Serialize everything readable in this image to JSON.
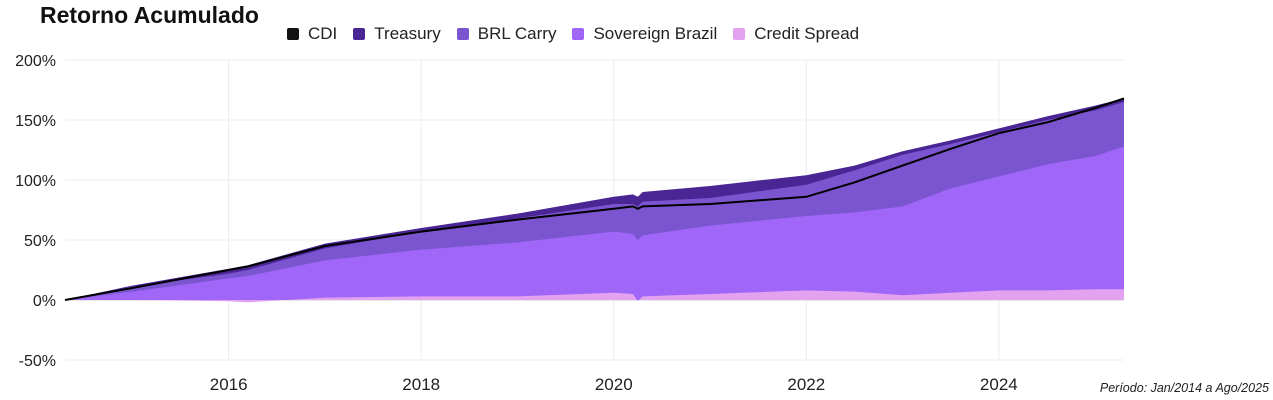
{
  "chart_data": {
    "type": "area",
    "title": "Retorno Acumulado",
    "footnote": "Período: Jan/2014 a Ago/2025",
    "xlim": [
      2014.3,
      2025.3
    ],
    "ylim": [
      -50,
      200
    ],
    "y_ticks": [
      200,
      150,
      100,
      50,
      0,
      -50
    ],
    "y_tick_labels": [
      "200%",
      "150%",
      "100%",
      "50%",
      "0%",
      "-50%"
    ],
    "x_ticks": [
      2016,
      2018,
      2020,
      2022,
      2024
    ],
    "x_tick_labels": [
      "2016",
      "2018",
      "2020",
      "2022",
      "2024"
    ],
    "grid": true,
    "legend_position": "top",
    "x": [
      2014.3,
      2015.0,
      2016.0,
      2016.2,
      2017.0,
      2018.0,
      2019.0,
      2020.0,
      2020.2,
      2020.25,
      2020.3,
      2021.0,
      2022.0,
      2022.5,
      2023.0,
      2023.5,
      2024.0,
      2024.5,
      2025.0,
      2025.3
    ],
    "series": [
      {
        "name": "Credit Spread",
        "color": "#e2a2f0",
        "values": [
          0,
          0,
          -1,
          -2,
          2,
          3,
          3,
          6,
          5,
          -1,
          3,
          5,
          8,
          7,
          4,
          6,
          8,
          8,
          9,
          9
        ]
      },
      {
        "name": "Sovereign Brazil",
        "color": "#9f66f7",
        "values": [
          0,
          7,
          18,
          20,
          33,
          42,
          48,
          57,
          55,
          50,
          54,
          62,
          70,
          73,
          78,
          93,
          103,
          113,
          120,
          128
        ]
      },
      {
        "name": "BRL Carry",
        "color": "#7a55cf",
        "values": [
          0,
          11,
          22,
          25,
          43,
          57,
          68,
          80,
          80,
          78,
          82,
          85,
          96,
          108,
          121,
          130,
          140,
          150,
          158,
          165
        ]
      },
      {
        "name": "Treasury",
        "color": "#4a2594",
        "values": [
          0,
          12,
          26,
          29,
          47,
          60,
          72,
          86,
          88,
          86,
          90,
          95,
          104,
          112,
          124,
          133,
          143,
          153,
          162,
          168
        ]
      }
    ],
    "line_series": {
      "name": "CDI",
      "color": "#000000",
      "values": [
        0,
        10,
        25,
        28,
        45,
        57,
        67,
        76,
        78,
        76,
        78,
        80,
        86,
        98,
        112,
        126,
        139,
        148,
        160,
        168
      ]
    },
    "legend": [
      {
        "label": "CDI",
        "color": "#111111"
      },
      {
        "label": "Treasury",
        "color": "#4a2594"
      },
      {
        "label": "BRL Carry",
        "color": "#7a55cf"
      },
      {
        "label": "Sovereign Brazil",
        "color": "#9f66f7"
      },
      {
        "label": "Credit Spread",
        "color": "#e2a2f0"
      }
    ]
  }
}
